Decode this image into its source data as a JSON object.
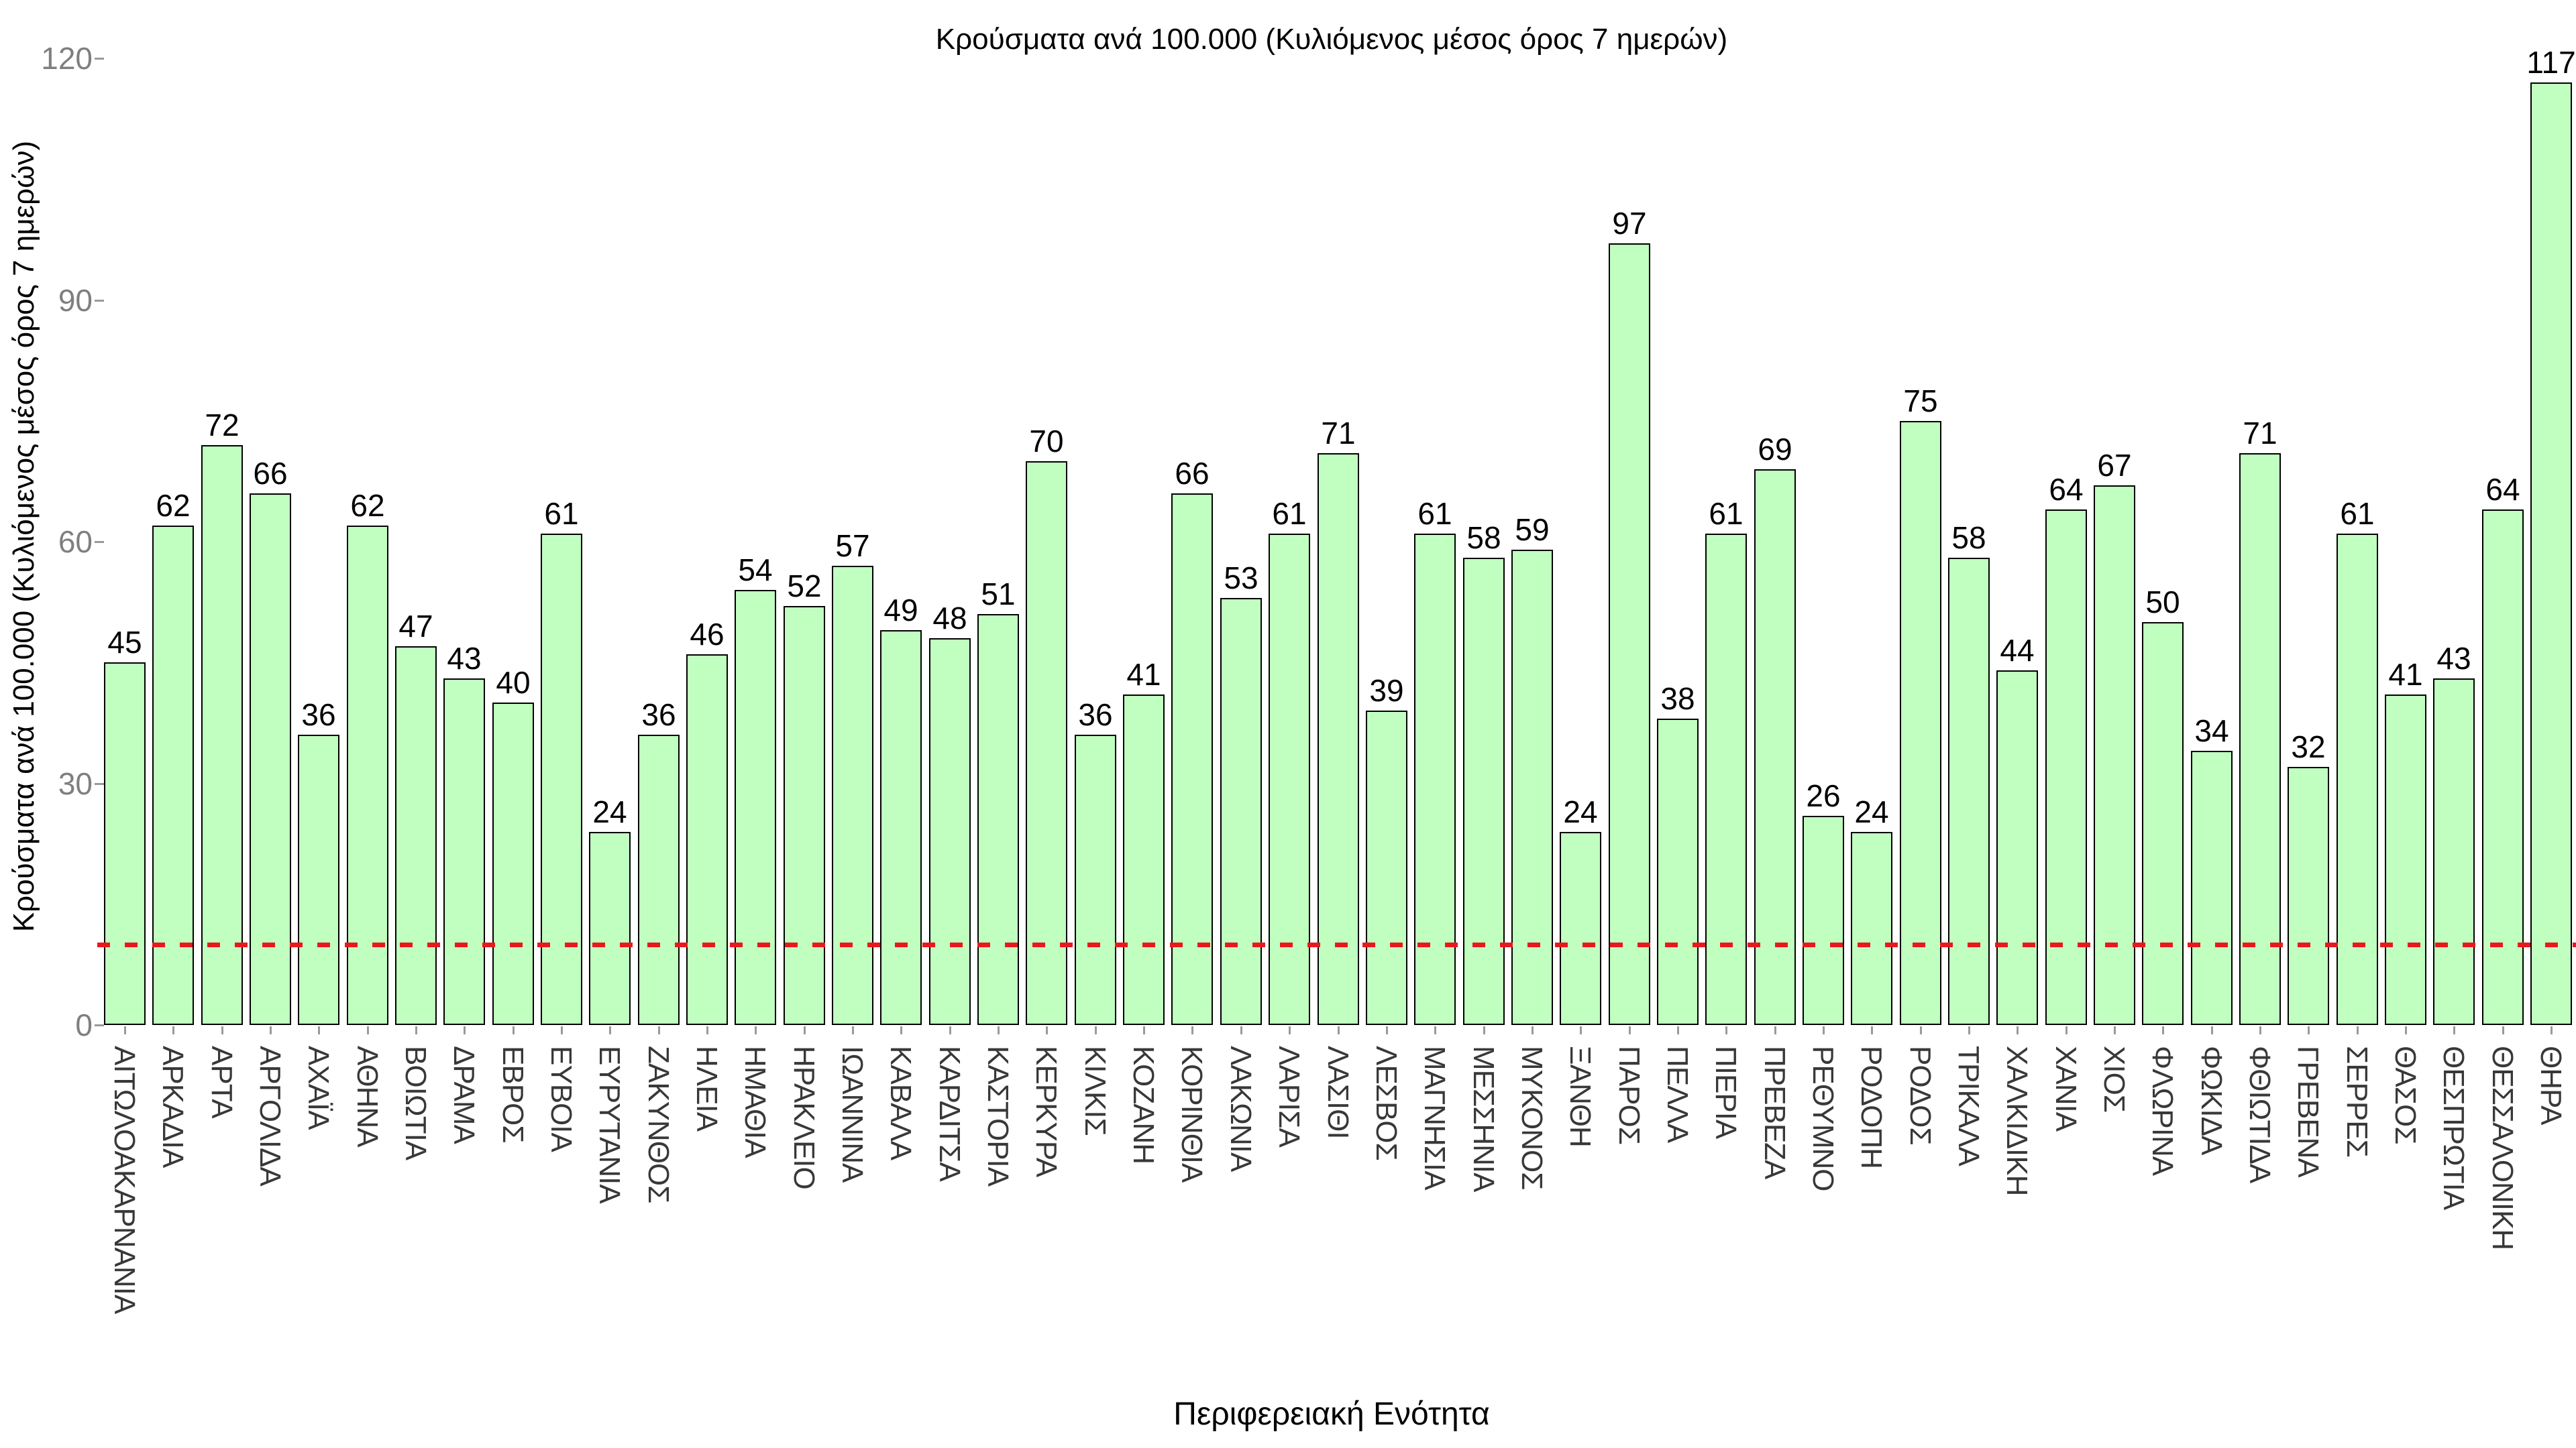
{
  "chart_data": {
    "type": "bar",
    "title": "Κρούσματα ανά 100.000 (Κυλιόμενος μέσος όρος 7 ημερών)",
    "xlabel": "Περιφερειακή Ενότητα",
    "ylabel": "Κρούσματα ανά 100.000 (Κυλιόμενος μέσος όρος 7 ημερών)",
    "ylim": [
      0,
      120
    ],
    "yticks": [
      0,
      30,
      60,
      90,
      120
    ],
    "grid": false,
    "legend": "none",
    "bar_fill_color": "#c1ffc1",
    "bar_border_color": "#000000",
    "threshold_line": {
      "value": 10,
      "color": "#e8191c",
      "style": "dashed"
    },
    "categories": [
      "ΑΙΤΩΛΟΑΚΑΡΝΑΝΙΑ",
      "ΑΡΚΑΔΙΑ",
      "ΑΡΤΑ",
      "ΑΡΓΟΛΙΔΑ",
      "ΑΧΑΪΑ",
      "ΑΘΗΝΑ",
      "ΒΟΙΩΤΙΑ",
      "ΔΡΑΜΑ",
      "ΕΒΡΟΣ",
      "ΕΥΒΟΙΑ",
      "ΕΥΡΥΤΑΝΙΑ",
      "ΖΑΚΥΝΘΟΣ",
      "ΗΛΕΙΑ",
      "ΗΜΑΘΙΑ",
      "ΗΡΑΚΛΕΙΟ",
      "ΙΩΑΝΝΙΝΑ",
      "ΚΑΒΑΛΑ",
      "ΚΑΡΔΙΤΣΑ",
      "ΚΑΣΤΟΡΙΑ",
      "ΚΕΡΚΥΡΑ",
      "ΚΙΛΚΙΣ",
      "ΚΟΖΑΝΗ",
      "ΚΟΡΙΝΘΙΑ",
      "ΛΑΚΩΝΙΑ",
      "ΛΑΡΙΣΑ",
      "ΛΑΣΙΘΙ",
      "ΛΕΣΒΟΣ",
      "ΜΑΓΝΗΣΙΑ",
      "ΜΕΣΣΗΝΙΑ",
      "ΜΥΚΟΝΟΣ",
      "ΞΑΝΘΗ",
      "ΠΑΡΟΣ",
      "ΠΕΛΛΑ",
      "ΠΙΕΡΙΑ",
      "ΠΡΕΒΕΖΑ",
      "ΡΕΘΥΜΝΟ",
      "ΡΟΔΟΠΗ",
      "ΡΟΔΟΣ",
      "ΤΡΙΚΑΛΑ",
      "ΧΑΛΚΙΔΙΚΗ",
      "ΧΑΝΙΑ",
      "ΧΙΟΣ",
      "ΦΛΩΡΙΝΑ",
      "ΦΩΚΙΔΑ",
      "ΦΘΙΩΤΙΔΑ",
      "ΓΡΕΒΕΝΑ",
      "ΣΕΡΡΕΣ",
      "ΘΑΣΟΣ",
      "ΘΕΣΠΡΩΤΙΑ",
      "ΘΕΣΣΑΛΟΝΙΚΗ",
      "ΘΗΡΑ"
    ],
    "values": [
      45,
      62,
      72,
      66,
      36,
      62,
      47,
      43,
      40,
      61,
      24,
      36,
      46,
      54,
      52,
      57,
      49,
      48,
      51,
      70,
      36,
      41,
      66,
      53,
      61,
      71,
      39,
      61,
      58,
      59,
      24,
      97,
      38,
      61,
      69,
      26,
      24,
      75,
      58,
      44,
      64,
      67,
      50,
      34,
      71,
      32,
      61,
      41,
      43,
      64,
      117
    ]
  }
}
